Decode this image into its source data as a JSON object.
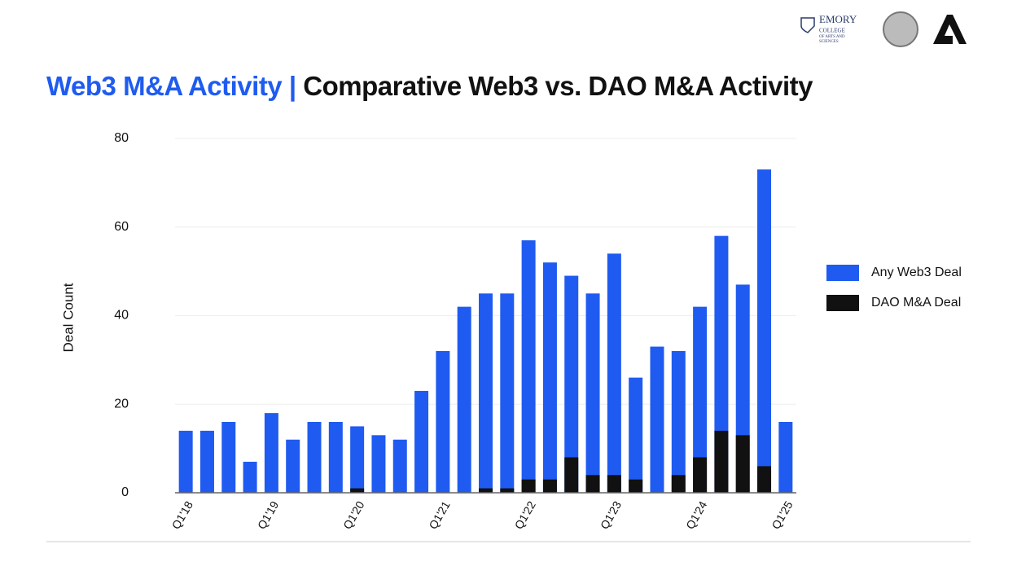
{
  "header": {
    "logo_text": [
      "EMORY",
      "COLLEGE",
      "OF ARTS AND",
      "SCIENCES"
    ]
  },
  "chart_data": {
    "type": "bar",
    "title_prefix": "Web3 M&A Activity |",
    "title": "Comparative Web3 vs. DAO M&A Activity",
    "y_label": "Deal Count",
    "categories": [
      "Q1'18",
      null,
      null,
      null,
      "Q1'19",
      null,
      null,
      null,
      "Q1'20",
      null,
      null,
      null,
      "Q1'21",
      null,
      null,
      null,
      "Q1'22",
      null,
      null,
      null,
      "Q1'23",
      null,
      null,
      null,
      "Q1'24",
      null,
      null,
      null,
      "Q1'25"
    ],
    "series": [
      {
        "name": "Any Web3 Deal",
        "color": "#1f5bf0",
        "values": [
          14,
          14,
          16,
          7,
          18,
          12,
          16,
          16,
          15,
          13,
          12,
          23,
          32,
          42,
          45,
          45,
          57,
          52,
          49,
          45,
          54,
          26,
          33,
          32,
          42,
          58,
          47,
          73,
          16
        ]
      },
      {
        "name": "DAO M&A Deal",
        "color": "#111111",
        "values": [
          0,
          0,
          0,
          0,
          0,
          0,
          0,
          0,
          1,
          0,
          0,
          0,
          0,
          0,
          1,
          1,
          3,
          3,
          8,
          4,
          4,
          3,
          0,
          4,
          8,
          14,
          13,
          6,
          0
        ]
      }
    ],
    "ylim": [
      0,
      80
    ],
    "yticks": [
      0,
      20,
      40,
      60,
      80
    ],
    "grid": true,
    "legend": "right"
  }
}
